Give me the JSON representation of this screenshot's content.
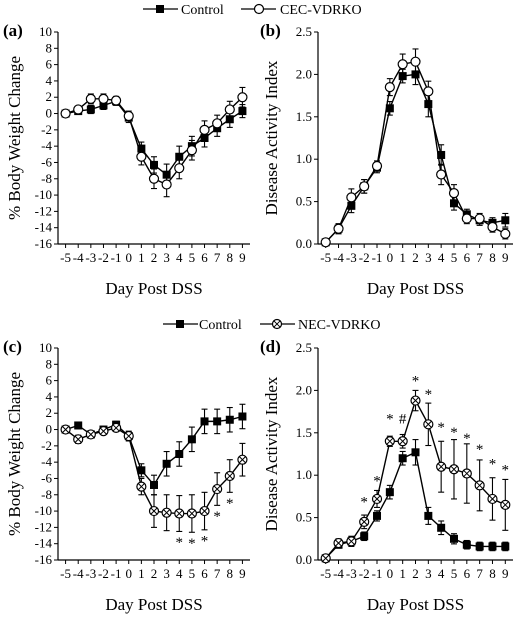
{
  "chart_data": [
    {
      "type": "line",
      "panel": "(a)",
      "legend": [
        "Control",
        "CEC-VDRKO"
      ],
      "xlabel": "Day Post DSS",
      "ylabel": "% Body Weight Change",
      "x": [
        -5,
        -4,
        -3,
        -2,
        -1,
        0,
        1,
        2,
        3,
        4,
        5,
        6,
        7,
        8,
        9
      ],
      "xtick_labels": [
        "-5",
        "-4",
        "-3",
        "-2",
        "-1",
        "0",
        "1",
        "2",
        "3",
        "4",
        "5",
        "6",
        "7",
        "8",
        "9"
      ],
      "ylim": [
        -16,
        10
      ],
      "yticks": [
        -16,
        -14,
        -12,
        -10,
        -8,
        -6,
        -4,
        -2,
        0,
        2,
        4,
        6,
        8,
        10
      ],
      "series": [
        {
          "name": "Control",
          "marker": "filled-square",
          "values": [
            0,
            0.3,
            0.5,
            1.0,
            1.5,
            -0.5,
            -4.3,
            -6.3,
            -7.5,
            -5.3,
            -4.0,
            -3.0,
            -1.8,
            -0.7,
            0.3
          ],
          "err": [
            0.3,
            0.4,
            0.5,
            0.5,
            0.5,
            0.6,
            0.8,
            1.0,
            1.3,
            1.3,
            1.2,
            1.1,
            1.0,
            1.0,
            0.8
          ]
        },
        {
          "name": "CEC-VDRKO",
          "marker": "open-circle",
          "values": [
            0,
            0.5,
            1.8,
            1.8,
            1.6,
            -0.3,
            -5.3,
            -8.0,
            -8.7,
            -6.7,
            -4.5,
            -2.0,
            -1.2,
            0.5,
            2.0
          ],
          "err": [
            0.3,
            0.4,
            0.6,
            0.6,
            0.5,
            0.6,
            1.0,
            1.2,
            1.5,
            1.3,
            1.2,
            1.1,
            1.0,
            1.0,
            1.2
          ]
        }
      ]
    },
    {
      "type": "line",
      "panel": "(b)",
      "legend": [
        "Control",
        "CEC-VDRKO"
      ],
      "xlabel": "Day Post DSS",
      "ylabel": "Disease Activity Index",
      "x": [
        -5,
        -4,
        -3,
        -2,
        -1,
        0,
        1,
        2,
        3,
        4,
        5,
        6,
        7,
        8,
        9
      ],
      "xtick_labels": [
        "-5",
        "-4",
        "-3",
        "-2",
        "-1",
        "0",
        "1",
        "2",
        "3",
        "4",
        "5",
        "6",
        "7",
        "8",
        "9"
      ],
      "ylim": [
        0,
        2.5
      ],
      "yticks": [
        0.0,
        0.5,
        1.0,
        1.5,
        2.0,
        2.5
      ],
      "ytick_labels": [
        "0.0",
        "0.5",
        "1.0",
        "1.5",
        "2.0",
        "2.5"
      ],
      "series": [
        {
          "name": "Control",
          "marker": "filled-square",
          "values": [
            0.02,
            0.18,
            0.45,
            0.68,
            0.9,
            1.6,
            1.98,
            2.0,
            1.65,
            1.05,
            0.48,
            0.35,
            0.28,
            0.25,
            0.28
          ],
          "err": [
            0.02,
            0.05,
            0.08,
            0.08,
            0.06,
            0.08,
            0.08,
            0.12,
            0.15,
            0.12,
            0.08,
            0.06,
            0.06,
            0.06,
            0.08
          ]
        },
        {
          "name": "CEC-VDRKO",
          "marker": "open-circle",
          "values": [
            0.02,
            0.18,
            0.55,
            0.68,
            0.92,
            1.85,
            2.12,
            2.15,
            1.8,
            0.82,
            0.6,
            0.3,
            0.3,
            0.2,
            0.12
          ],
          "err": [
            0.02,
            0.06,
            0.1,
            0.08,
            0.06,
            0.1,
            0.12,
            0.15,
            0.12,
            0.12,
            0.1,
            0.06,
            0.06,
            0.06,
            0.06
          ]
        }
      ]
    },
    {
      "type": "line",
      "panel": "(c)",
      "legend": [
        "Control",
        "NEC-VDRKO"
      ],
      "xlabel": "Day Post DSS",
      "ylabel": "% Body Weight Change",
      "x": [
        -5,
        -4,
        -3,
        -2,
        -1,
        0,
        1,
        2,
        3,
        4,
        5,
        6,
        7,
        8,
        9
      ],
      "xtick_labels": [
        "-5",
        "-4",
        "-3",
        "-2",
        "-1",
        "0",
        "1",
        "2",
        "3",
        "4",
        "5",
        "6",
        "7",
        "8",
        "9"
      ],
      "ylim": [
        -16,
        10
      ],
      "yticks": [
        -16,
        -14,
        -12,
        -10,
        -8,
        -6,
        -4,
        -2,
        0,
        2,
        4,
        6,
        8,
        10
      ],
      "series": [
        {
          "name": "Control",
          "marker": "filled-square",
          "values": [
            0,
            0.5,
            -0.6,
            0,
            0.6,
            -0.8,
            -5.0,
            -6.8,
            -4.2,
            -3.0,
            -1.2,
            1.0,
            1.0,
            1.2,
            1.6
          ],
          "err": [
            0.3,
            0.4,
            0.4,
            0.3,
            0.4,
            0.5,
            0.8,
            1.2,
            1.5,
            1.5,
            1.5,
            1.5,
            1.5,
            1.5,
            1.5
          ]
        },
        {
          "name": "NEC-VDRKO",
          "marker": "crossed-circle",
          "values": [
            0,
            -1.2,
            -0.6,
            -0.2,
            0.2,
            -0.8,
            -7.0,
            -10.0,
            -10.2,
            -10.3,
            -10.3,
            -10.0,
            -7.3,
            -5.7,
            -3.7
          ],
          "err": [
            0.3,
            0.5,
            0.4,
            0.4,
            0.4,
            0.6,
            1.0,
            2.0,
            2.2,
            2.2,
            2.3,
            2.3,
            2.0,
            2.0,
            2.0
          ]
        }
      ],
      "significance": [
        {
          "x": 4,
          "y_above": false,
          "label": "*"
        },
        {
          "x": 5,
          "y_above": false,
          "label": "*"
        },
        {
          "x": 6,
          "y_above": false,
          "label": "*"
        },
        {
          "x": 7,
          "y_above": false,
          "label": "*"
        },
        {
          "x": 8,
          "y_above": false,
          "label": "*"
        }
      ]
    },
    {
      "type": "line",
      "panel": "(d)",
      "legend": [
        "Control",
        "NEC-VDRKO"
      ],
      "xlabel": "Day Post DSS",
      "ylabel": "Disease Activity Index",
      "x": [
        -5,
        -4,
        -3,
        -2,
        -1,
        0,
        1,
        2,
        3,
        4,
        5,
        6,
        7,
        8,
        9
      ],
      "xtick_labels": [
        "-5",
        "-4",
        "-3",
        "-2",
        "-1",
        "0",
        "1",
        "2",
        "3",
        "4",
        "5",
        "6",
        "7",
        "8",
        "9"
      ],
      "ylim": [
        0,
        2.5
      ],
      "yticks": [
        0.0,
        0.5,
        1.0,
        1.5,
        2.0,
        2.5
      ],
      "ytick_labels": [
        "0.0",
        "0.5",
        "1.0",
        "1.5",
        "2.0",
        "2.5"
      ],
      "series": [
        {
          "name": "Control",
          "marker": "filled-square",
          "values": [
            0.02,
            0.18,
            0.22,
            0.28,
            0.52,
            0.8,
            1.2,
            1.27,
            0.52,
            0.38,
            0.25,
            0.18,
            0.16,
            0.16,
            0.16
          ],
          "err": [
            0.02,
            0.04,
            0.05,
            0.05,
            0.06,
            0.08,
            0.08,
            0.15,
            0.1,
            0.08,
            0.06,
            0.05,
            0.05,
            0.05,
            0.05
          ]
        },
        {
          "name": "NEC-VDRKO",
          "marker": "crossed-circle",
          "values": [
            0.02,
            0.2,
            0.22,
            0.45,
            0.72,
            1.4,
            1.4,
            1.88,
            1.6,
            1.1,
            1.07,
            1.02,
            0.88,
            0.72,
            0.65
          ],
          "err": [
            0.02,
            0.05,
            0.06,
            0.08,
            0.1,
            0.06,
            0.08,
            0.12,
            0.25,
            0.3,
            0.35,
            0.35,
            0.3,
            0.25,
            0.3
          ]
        }
      ],
      "significance": [
        {
          "x": -2,
          "y": 0.7,
          "label": "*"
        },
        {
          "x": -1,
          "y": 0.95,
          "label": "*"
        },
        {
          "x": 0,
          "y": 1.68,
          "label": "*"
        },
        {
          "x": 1,
          "y": 1.68,
          "label": "#"
        },
        {
          "x": 2,
          "y": 2.13,
          "label": "*"
        },
        {
          "x": 3,
          "y": 1.97,
          "label": "*"
        },
        {
          "x": 4,
          "y": 1.58,
          "label": "*"
        },
        {
          "x": 5,
          "y": 1.52,
          "label": "*"
        },
        {
          "x": 6,
          "y": 1.45,
          "label": "*"
        },
        {
          "x": 7,
          "y": 1.32,
          "label": "*"
        },
        {
          "x": 8,
          "y": 1.15,
          "label": "*"
        },
        {
          "x": 9,
          "y": 1.08,
          "label": "*"
        }
      ]
    }
  ],
  "legend_top": {
    "labels": [
      "Control",
      "CEC-VDRKO"
    ]
  },
  "legend_mid": {
    "labels": [
      "Control",
      "NEC-VDRKO"
    ]
  }
}
